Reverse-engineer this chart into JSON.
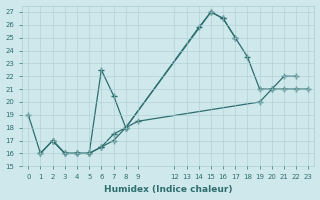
{
  "xlabel": "Humidex (Indice chaleur)",
  "bg_color": "#cfe8ec",
  "grid_color": "#aacdd4",
  "line_color": "#2d6e6e",
  "xlim": [
    -0.5,
    23.5
  ],
  "ylim": [
    15,
    27.5
  ],
  "xticks": [
    0,
    1,
    2,
    3,
    4,
    5,
    6,
    7,
    8,
    9,
    12,
    13,
    14,
    15,
    16,
    17,
    18,
    19,
    20,
    21,
    22,
    23
  ],
  "yticks": [
    15,
    16,
    17,
    18,
    19,
    20,
    21,
    22,
    23,
    24,
    25,
    26,
    27
  ],
  "line1_x": [
    0,
    1,
    2,
    3,
    4,
    5,
    6,
    7,
    8,
    14,
    15,
    16,
    17
  ],
  "line1_y": [
    19,
    16,
    17,
    16,
    16,
    16,
    22.5,
    20.5,
    18,
    25.8,
    27,
    26.5,
    25
  ],
  "line2_x": [
    1,
    2,
    3,
    4,
    5,
    6,
    7,
    8,
    15,
    16,
    17,
    18,
    19,
    20,
    21,
    22
  ],
  "line2_y": [
    16,
    17,
    16,
    16,
    16,
    16.5,
    17.5,
    18,
    27,
    26.5,
    25,
    23.5,
    21,
    21,
    22,
    22
  ],
  "line3_x": [
    2,
    3,
    4,
    5,
    6,
    7,
    8,
    9,
    19,
    20,
    21,
    22,
    23
  ],
  "line3_y": [
    17,
    16,
    16,
    16,
    16.5,
    17,
    18,
    18.5,
    20,
    21,
    21,
    21,
    21
  ]
}
